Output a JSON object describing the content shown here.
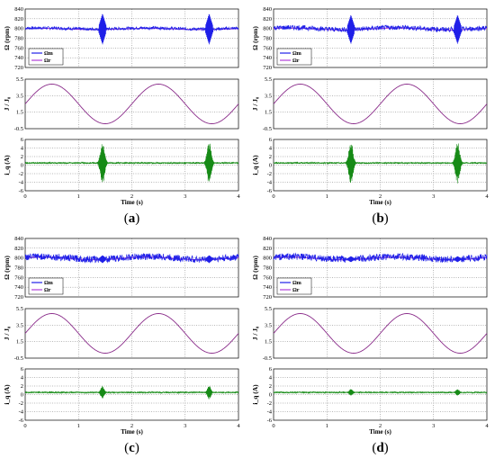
{
  "colors": {
    "omega_m": "#1f1fe8",
    "omega_r": "#b040d8",
    "inertia": "#8a2c8a",
    "current": "#168a16",
    "ref_line": "#20c020",
    "frame": "#000000"
  },
  "axes": {
    "x_ticks": [
      "0",
      "1",
      "2",
      "3",
      "4"
    ],
    "x_label": "Time (s)",
    "speed_label": "Ω (rpm)",
    "speed_ticks": [
      "840",
      "820",
      "800",
      "780",
      "760",
      "740",
      "720"
    ],
    "inertia_label": "J / J₀",
    "inertia_ticks": [
      "5.5",
      "3.5",
      "1.5",
      "-0.5"
    ],
    "current_label": "i_q (A)",
    "current_ticks": [
      "6",
      "4",
      "2",
      "0",
      "-2",
      "-4",
      "-6"
    ]
  },
  "legend": {
    "omega_m": "Ωm",
    "omega_r": "Ωr"
  },
  "chart_data": [
    {
      "type": "line",
      "panel": "a",
      "caption": "(a)",
      "speed": {
        "ylim": [
          720,
          840
        ],
        "ref_mean": 800,
        "oscillation": 3,
        "burst_times": [
          1.45,
          3.45
        ],
        "burst_amplitude": 32
      },
      "inertia": {
        "ylim": [
          -0.5,
          5.5
        ],
        "min": 0.1,
        "max": 4.9,
        "period": 2,
        "first_peak": 0.5
      },
      "current": {
        "ylim": [
          -6,
          6
        ],
        "baseline": 0.5,
        "burst_times": [
          1.45,
          3.45
        ],
        "burst_amplitude": 5,
        "burst_width": 0.12
      },
      "x": {
        "xlim": [
          0,
          4
        ]
      }
    },
    {
      "type": "line",
      "panel": "b",
      "caption": "(b)",
      "speed": {
        "ylim": [
          720,
          840
        ],
        "ref_mean": 800,
        "oscillation": 5,
        "burst_times": [
          1.45,
          3.45
        ],
        "burst_amplitude": 30
      },
      "inertia": {
        "ylim": [
          -0.5,
          5.5
        ],
        "min": 0.1,
        "max": 4.9,
        "period": 2,
        "first_peak": 0.5
      },
      "current": {
        "ylim": [
          -6,
          6
        ],
        "baseline": 0.5,
        "burst_times": [
          1.45,
          3.45
        ],
        "burst_amplitude": 5,
        "burst_width": 0.12
      },
      "x": {
        "xlim": [
          0,
          4
        ]
      }
    },
    {
      "type": "line",
      "panel": "c",
      "caption": "(c)",
      "speed": {
        "ylim": [
          720,
          840
        ],
        "ref_mean": 800,
        "oscillation": 7,
        "burst_times": [
          1.45,
          3.45
        ],
        "burst_amplitude": 8
      },
      "inertia": {
        "ylim": [
          -0.5,
          5.5
        ],
        "min": 0.1,
        "max": 4.9,
        "period": 2,
        "first_peak": 0.5
      },
      "current": {
        "ylim": [
          -6,
          6
        ],
        "baseline": 0.5,
        "burst_times": [
          1.45,
          3.45
        ],
        "burst_amplitude": 1.6,
        "burst_width": 0.1
      },
      "x": {
        "xlim": [
          0,
          4
        ]
      }
    },
    {
      "type": "line",
      "panel": "d",
      "caption": "(d)",
      "speed": {
        "ylim": [
          720,
          840
        ],
        "ref_mean": 800,
        "oscillation": 7,
        "burst_times": [
          1.45,
          3.45
        ],
        "burst_amplitude": 6
      },
      "inertia": {
        "ylim": [
          -0.5,
          5.5
        ],
        "min": 0.1,
        "max": 4.9,
        "period": 2,
        "first_peak": 0.5
      },
      "current": {
        "ylim": [
          -6,
          6
        ],
        "baseline": 0.5,
        "burst_times": [
          1.45,
          3.45
        ],
        "burst_amplitude": 0.8,
        "burst_width": 0.1
      },
      "x": {
        "xlim": [
          0,
          4
        ]
      }
    }
  ]
}
